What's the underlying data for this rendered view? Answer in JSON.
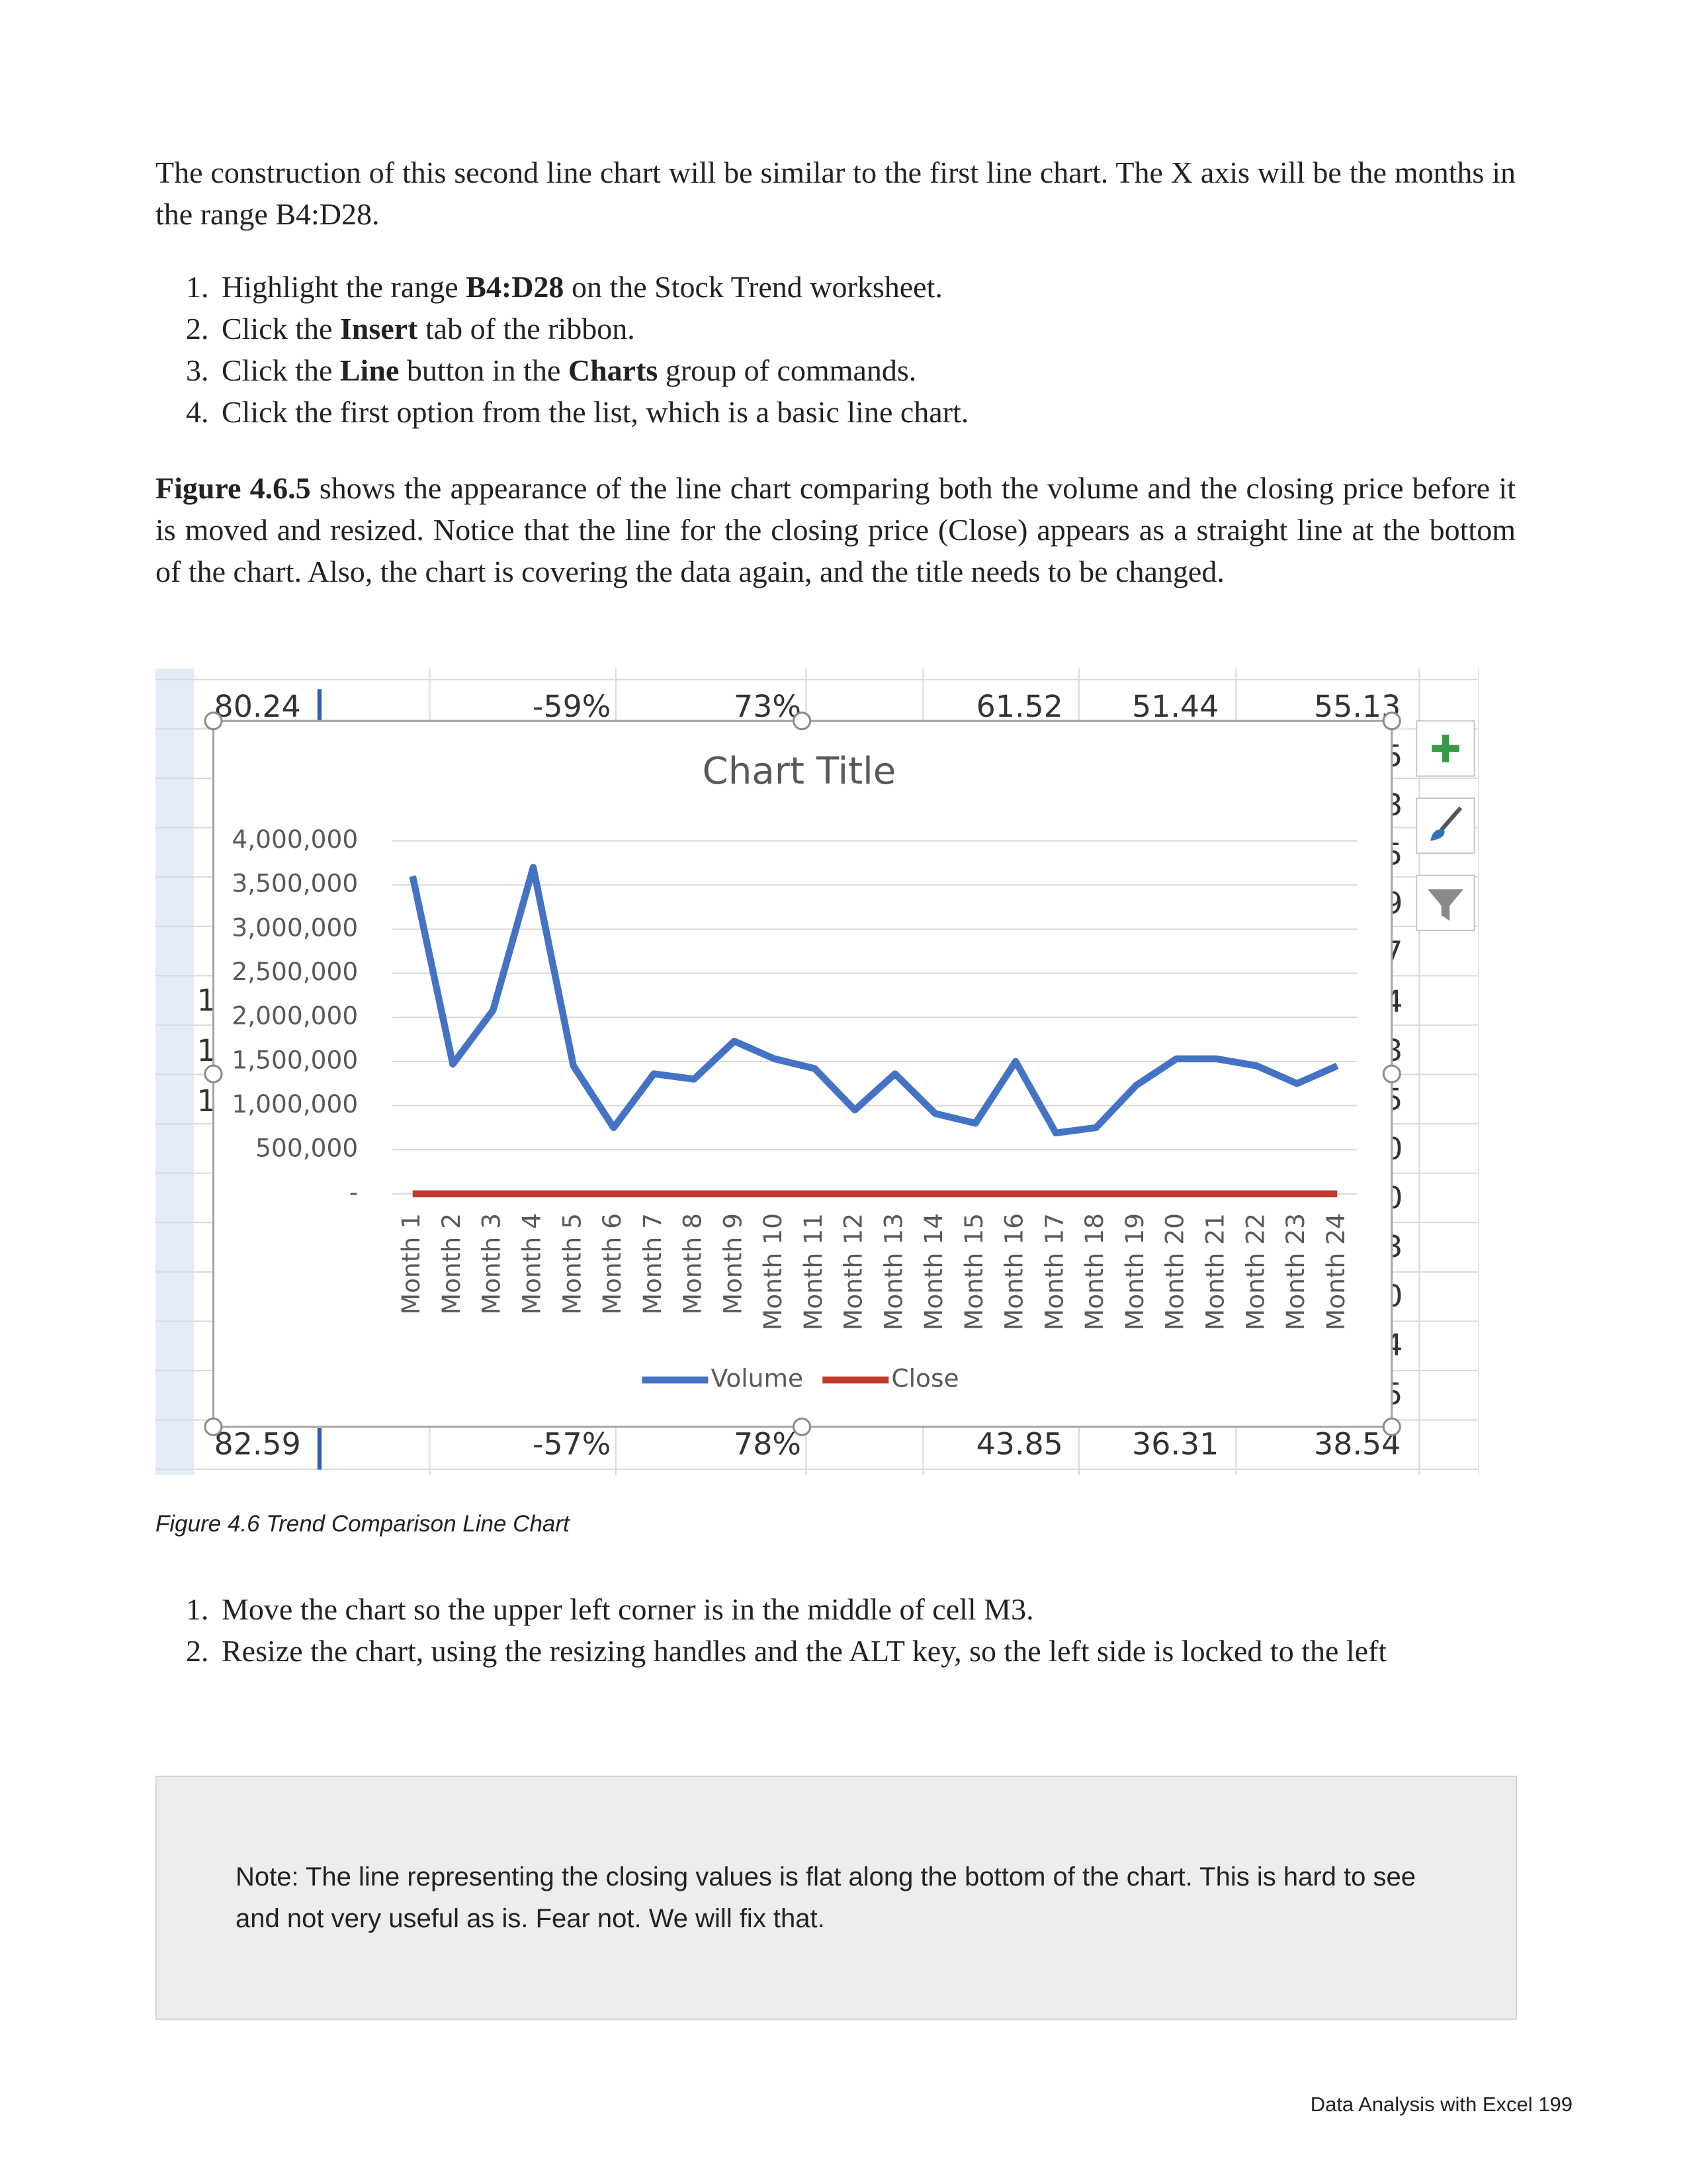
{
  "para1": [
    "The construction of this second line chart will be similar to the first line chart. The X axis will be the months in the range B4:D28."
  ],
  "steps1": [
    [
      "Highlight the range ",
      {
        "bold": "B4:D28"
      },
      " on the Stock Trend worksheet."
    ],
    [
      "Click the ",
      {
        "bold": "Insert"
      },
      " tab of the ribbon."
    ],
    [
      "Click the ",
      {
        "bold": "Line"
      },
      " button in the ",
      {
        "bold": "Charts"
      },
      " group of commands."
    ],
    [
      "Click the first option from the list, which is a basic line chart."
    ]
  ],
  "para2": [
    {
      "bold": "Figure 4.6.5"
    },
    " shows the appearance of the line chart comparing both the volume and the closing price before it is moved and resized. Notice that the line for the closing price (Close) appears as a straight line at the bottom of the chart.  Also, the chart is covering the data again, and the title needs to be changed."
  ],
  "cells": {
    "top": [
      "80.24",
      "-59%",
      "73%",
      "61.52",
      "51.44",
      "55.13"
    ],
    "bottom": [
      "82.59",
      "-57%",
      "78%",
      "43.85",
      "36.31",
      "38.54"
    ],
    "right": [
      "5",
      "3",
      "5",
      "9",
      "7",
      "4",
      "3",
      "5",
      "0",
      "0",
      "3",
      "0",
      "4",
      "5"
    ],
    "left": [
      "1",
      "1",
      "1"
    ]
  },
  "chart_data": {
    "type": "line",
    "title": "Chart Title",
    "categories": [
      "Month 1",
      "Month 2",
      "Month 3",
      "Month 4",
      "Month 5",
      "Month 6",
      "Month 7",
      "Month 8",
      "Month 9",
      "Month 10",
      "Month 11",
      "Month 12",
      "Month 13",
      "Month 14",
      "Month 15",
      "Month 16",
      "Month 17",
      "Month 18",
      "Month 19",
      "Month 20",
      "Month 21",
      "Month 22",
      "Month 23",
      "Month 24"
    ],
    "series": [
      {
        "name": "Volume",
        "color": "#4472c4",
        "values": [
          3600000,
          1470000,
          2080000,
          3700000,
          1450000,
          750000,
          1360000,
          1300000,
          1730000,
          1530000,
          1420000,
          950000,
          1360000,
          910000,
          800000,
          1500000,
          690000,
          750000,
          1230000,
          1530000,
          1530000,
          1450000,
          1250000,
          1450000
        ]
      },
      {
        "name": "Close",
        "color": "#c0392b",
        "values": [
          60,
          60,
          60,
          60,
          60,
          60,
          60,
          60,
          60,
          60,
          60,
          60,
          60,
          60,
          60,
          60,
          60,
          60,
          60,
          60,
          60,
          60,
          60,
          60
        ]
      }
    ],
    "ylim": [
      0,
      4000000
    ],
    "yticks": [
      {
        "value": 0,
        "label": "-"
      },
      {
        "value": 500000,
        "label": "500,000"
      },
      {
        "value": 1000000,
        "label": "1,000,000"
      },
      {
        "value": 1500000,
        "label": "1,500,000"
      },
      {
        "value": 2000000,
        "label": "2,000,000"
      },
      {
        "value": 2500000,
        "label": "2,500,000"
      },
      {
        "value": 3000000,
        "label": "3,000,000"
      },
      {
        "value": 3500000,
        "label": "3,500,000"
      },
      {
        "value": 4000000,
        "label": "4,000,000"
      }
    ],
    "grid": true,
    "legend": "bottom"
  },
  "caption": "Figure 4.6 Trend Comparison Line Chart",
  "steps2": [
    [
      "Move the chart so the upper left corner is in the middle of cell M3."
    ],
    [
      "Resize the chart, using the resizing handles and the ALT key, so the left side is locked to the left"
    ]
  ],
  "note": "Note: The line representing the closing values is flat along the bottom of the chart. This is hard to see and not very useful as is. Fear not. We will fix that.",
  "footer": "Data Analysis with Excel 199"
}
